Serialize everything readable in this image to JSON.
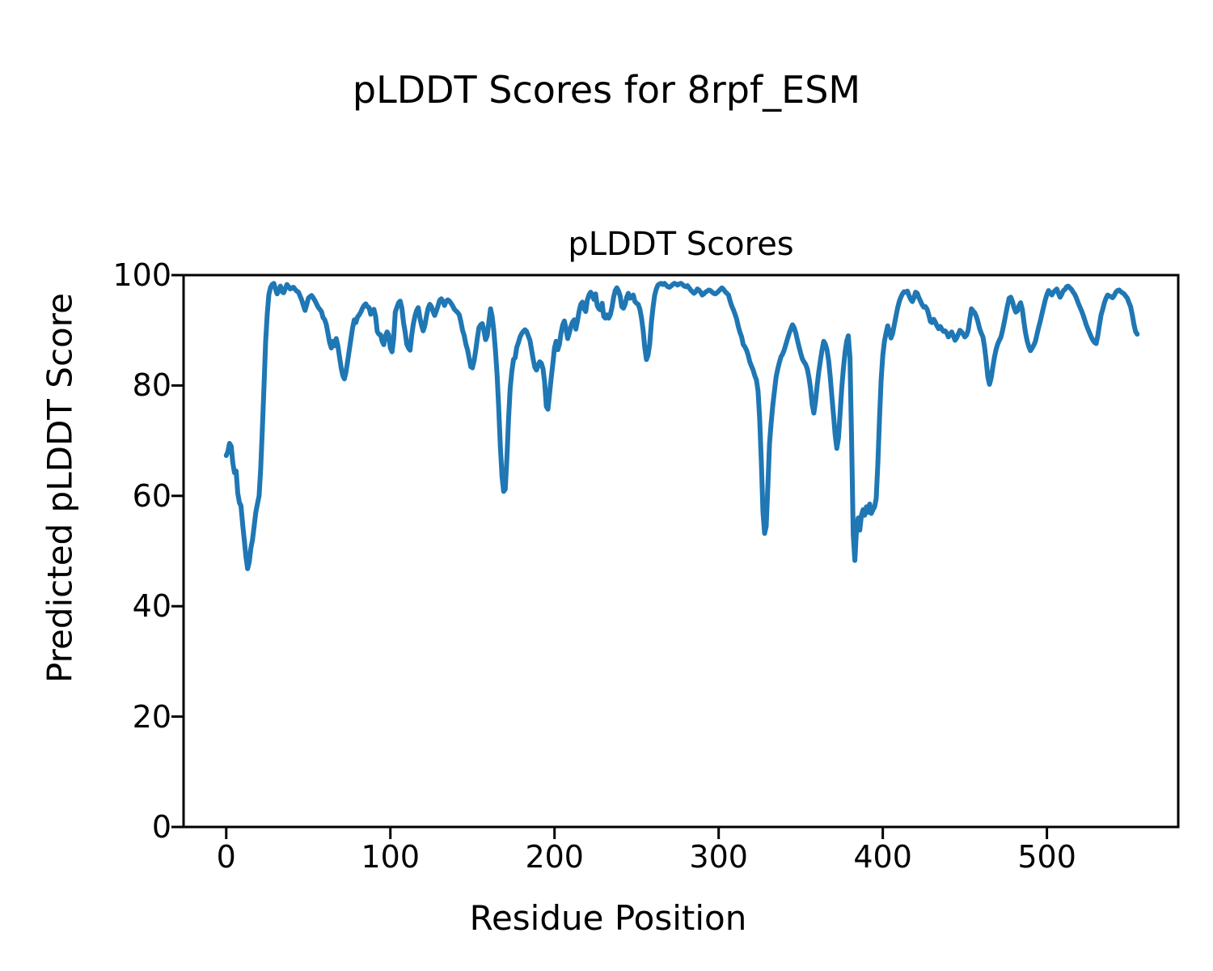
{
  "figure": {
    "suptitle": "pLDDT Scores for 8rpf_ESM"
  },
  "chart_data": {
    "type": "line",
    "title": "pLDDT Scores",
    "xlabel": "Residue Position",
    "ylabel": "Predicted pLDDT Score",
    "x_ticks": [
      0,
      100,
      200,
      300,
      400,
      500
    ],
    "y_ticks": [
      0,
      20,
      40,
      60,
      80,
      100
    ],
    "xlim": [
      -26,
      580
    ],
    "ylim": [
      0,
      100
    ],
    "grid": false,
    "legend": "none",
    "line_color": "#1f77b4",
    "frame_color": "#000000",
    "series": [
      {
        "name": "pLDDT",
        "x_start": 0,
        "x_step": 1,
        "values": [
          67.3,
          68.0,
          69.5,
          69.0,
          66.0,
          64.2,
          64.5,
          60.5,
          58.8,
          58.2,
          54.8,
          52.0,
          49.0,
          46.8,
          48.0,
          50.5,
          52.0,
          54.5,
          57.0,
          58.5,
          60.0,
          65.0,
          72.0,
          80.0,
          88.0,
          93.0,
          96.5,
          97.8,
          98.3,
          98.5,
          97.5,
          96.6,
          97.3,
          98.0,
          97.0,
          96.8,
          97.6,
          98.3,
          97.9,
          97.5,
          97.7,
          97.8,
          97.4,
          97.1,
          96.9,
          96.2,
          95.5,
          94.5,
          93.6,
          94.6,
          95.8,
          96.1,
          96.3,
          95.9,
          95.4,
          94.8,
          94.2,
          93.8,
          93.4,
          92.3,
          91.9,
          91.0,
          89.4,
          87.8,
          86.8,
          88.0,
          87.2,
          88.5,
          87.2,
          85.2,
          83.2,
          81.8,
          81.2,
          82.5,
          84.5,
          86.5,
          88.5,
          90.5,
          91.9,
          91.4,
          92.4,
          92.8,
          93.3,
          94.0,
          94.5,
          94.8,
          94.3,
          94.1,
          92.9,
          93.6,
          93.8,
          92.5,
          89.8,
          89.3,
          89.2,
          88.0,
          87.4,
          89.0,
          89.7,
          89.2,
          86.8,
          86.1,
          88.5,
          93.3,
          94.2,
          95.0,
          95.3,
          94.0,
          91.4,
          89.7,
          87.5,
          86.8,
          86.4,
          89.1,
          91.2,
          92.6,
          93.6,
          94.1,
          92.2,
          90.9,
          89.9,
          90.9,
          92.6,
          94.0,
          94.7,
          94.3,
          93.4,
          92.7,
          93.5,
          94.4,
          95.4,
          95.7,
          95.2,
          94.5,
          95.3,
          95.5,
          95.3,
          94.9,
          94.4,
          93.8,
          93.5,
          93.2,
          92.8,
          91.5,
          90.0,
          89.0,
          87.5,
          86.5,
          84.9,
          83.4,
          83.2,
          84.5,
          86.4,
          88.6,
          90.5,
          91.0,
          91.2,
          90.0,
          88.3,
          89.0,
          91.5,
          93.9,
          92.5,
          90.0,
          86.5,
          82.0,
          76.0,
          69.0,
          63.5,
          60.8,
          61.2,
          67.0,
          74.0,
          79.5,
          82.5,
          84.7,
          85.0,
          86.9,
          87.8,
          88.8,
          89.4,
          89.8,
          90.1,
          89.8,
          89.0,
          88.2,
          86.5,
          84.8,
          83.3,
          82.8,
          83.6,
          84.3,
          84.0,
          83.0,
          80.6,
          76.2,
          75.7,
          78.5,
          81.5,
          84.0,
          86.8,
          88.0,
          86.5,
          87.5,
          89.5,
          91.0,
          91.7,
          90.3,
          88.5,
          89.5,
          90.7,
          91.5,
          91.9,
          90.2,
          91.7,
          93.5,
          94.7,
          95.1,
          93.9,
          93.4,
          95.5,
          96.4,
          96.9,
          96.3,
          95.6,
          96.6,
          94.5,
          93.9,
          93.7,
          94.9,
          92.5,
          92.2,
          92.8,
          92.2,
          92.8,
          94.2,
          96.0,
          97.2,
          97.7,
          97.1,
          96.2,
          94.3,
          94.0,
          94.7,
          96.0,
          96.7,
          95.8,
          96.0,
          96.4,
          95.2,
          94.9,
          94.7,
          93.8,
          92.2,
          90.0,
          86.9,
          84.7,
          85.5,
          87.5,
          91.4,
          94.1,
          96.3,
          97.5,
          98.2,
          98.4,
          98.5,
          98.3,
          98.5,
          98.2,
          97.9,
          97.8,
          98.0,
          98.3,
          98.5,
          98.4,
          98.2,
          98.4,
          98.5,
          98.3,
          98.0,
          97.9,
          98.1,
          97.7,
          97.3,
          97.0,
          96.7,
          97.0,
          97.5,
          97.3,
          96.9,
          96.4,
          96.6,
          96.9,
          97.1,
          97.3,
          97.2,
          96.9,
          96.7,
          96.6,
          96.8,
          97.1,
          97.4,
          97.7,
          97.4,
          97.0,
          96.7,
          96.4,
          95.3,
          94.4,
          93.7,
          92.9,
          92.0,
          90.7,
          89.6,
          88.8,
          87.4,
          87.0,
          86.4,
          85.5,
          84.3,
          83.5,
          82.8,
          81.8,
          81.0,
          79.0,
          74.0,
          66.0,
          57.0,
          53.2,
          54.5,
          62.0,
          69.5,
          73.2,
          76.5,
          79.0,
          81.5,
          83.0,
          84.2,
          85.2,
          85.7,
          86.5,
          87.5,
          88.5,
          89.5,
          90.3,
          91.0,
          90.5,
          89.5,
          88.2,
          87.0,
          85.8,
          84.8,
          84.3,
          83.8,
          83.0,
          81.5,
          79.5,
          76.5,
          75.0,
          77.0,
          80.0,
          82.5,
          84.5,
          86.5,
          88.0,
          87.5,
          86.5,
          84.5,
          81.5,
          78.0,
          74.5,
          71.0,
          68.6,
          70.5,
          75.0,
          79.5,
          83.0,
          86.0,
          88.0,
          89.0,
          85.0,
          70.0,
          53.0,
          48.3,
          54.0,
          56.0,
          53.8,
          56.5,
          57.5,
          56.5,
          58.0,
          57.0,
          58.5,
          56.8,
          57.5,
          58.0,
          59.5,
          66.0,
          74.0,
          81.0,
          85.5,
          88.0,
          89.5,
          90.8,
          89.8,
          88.6,
          89.4,
          91.0,
          92.5,
          94.0,
          95.2,
          96.0,
          96.6,
          97.0,
          96.9,
          97.1,
          96.3,
          95.6,
          95.2,
          95.9,
          96.9,
          96.7,
          95.9,
          95.3,
          94.6,
          94.2,
          94.3,
          93.8,
          92.8,
          91.6,
          91.4,
          92.0,
          91.5,
          90.8,
          90.3,
          90.7,
          90.2,
          89.8,
          89.9,
          89.5,
          88.8,
          89.3,
          89.7,
          89.0,
          88.2,
          88.6,
          89.3,
          90.0,
          89.7,
          89.3,
          88.8,
          89.1,
          90.0,
          92.0,
          93.9,
          93.5,
          93.2,
          92.5,
          91.5,
          90.3,
          89.5,
          88.8,
          87.0,
          84.5,
          81.5,
          80.2,
          81.3,
          83.2,
          85.1,
          86.5,
          87.5,
          88.2,
          88.8,
          90.0,
          91.5,
          93.0,
          94.5,
          95.8,
          96.0,
          95.2,
          94.1,
          93.3,
          93.5,
          94.5,
          95.0,
          93.8,
          91.5,
          89.5,
          88.0,
          87.0,
          86.3,
          86.8,
          87.3,
          88.0,
          89.3,
          90.6,
          91.7,
          93.0,
          94.3,
          95.5,
          96.5,
          97.2,
          96.8,
          96.4,
          96.9,
          97.2,
          97.5,
          96.7,
          96.0,
          96.5,
          97.2,
          97.4,
          97.9,
          98.0,
          97.7,
          97.4,
          96.9,
          96.5,
          95.8,
          95.0,
          94.3,
          93.6,
          92.8,
          91.9,
          91.0,
          90.2,
          89.5,
          88.8,
          88.2,
          87.8,
          87.6,
          89.0,
          91.0,
          92.8,
          93.8,
          95.0,
          95.8,
          96.4,
          96.2,
          96.1,
          95.9,
          96.3,
          96.9,
          97.2,
          97.3,
          97.0,
          96.8,
          96.6,
          96.2,
          95.8,
          95.0,
          94.3,
          92.8,
          91.1,
          89.8,
          89.3
        ]
      }
    ]
  }
}
